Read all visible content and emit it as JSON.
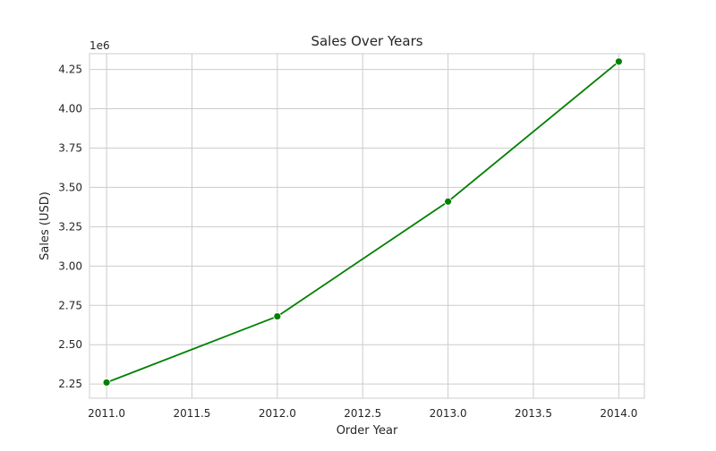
{
  "chart_data": {
    "type": "line",
    "title": "Sales Over Years",
    "xlabel": "Order Year",
    "ylabel": "Sales (USD)",
    "y_offset_label": "1e6",
    "xlim": [
      2010.9,
      2014.15
    ],
    "ylim": [
      2.16,
      4.35
    ],
    "x_ticks": [
      2011.0,
      2011.5,
      2012.0,
      2012.5,
      2013.0,
      2013.5,
      2014.0
    ],
    "x_tick_labels": [
      "2011.0",
      "2011.5",
      "2012.0",
      "2012.5",
      "2013.0",
      "2013.5",
      "2014.0"
    ],
    "y_ticks": [
      2.25,
      2.5,
      2.75,
      3.0,
      3.25,
      3.5,
      3.75,
      4.0,
      4.25
    ],
    "y_tick_labels": [
      "2.25",
      "2.50",
      "2.75",
      "3.00",
      "3.25",
      "3.50",
      "3.75",
      "4.00",
      "4.25"
    ],
    "grid": true,
    "series": [
      {
        "color": "#008000",
        "marker": "circle",
        "x": [
          2011,
          2012,
          2013,
          2014
        ],
        "y": [
          2.26,
          2.68,
          3.41,
          4.3
        ]
      }
    ]
  }
}
